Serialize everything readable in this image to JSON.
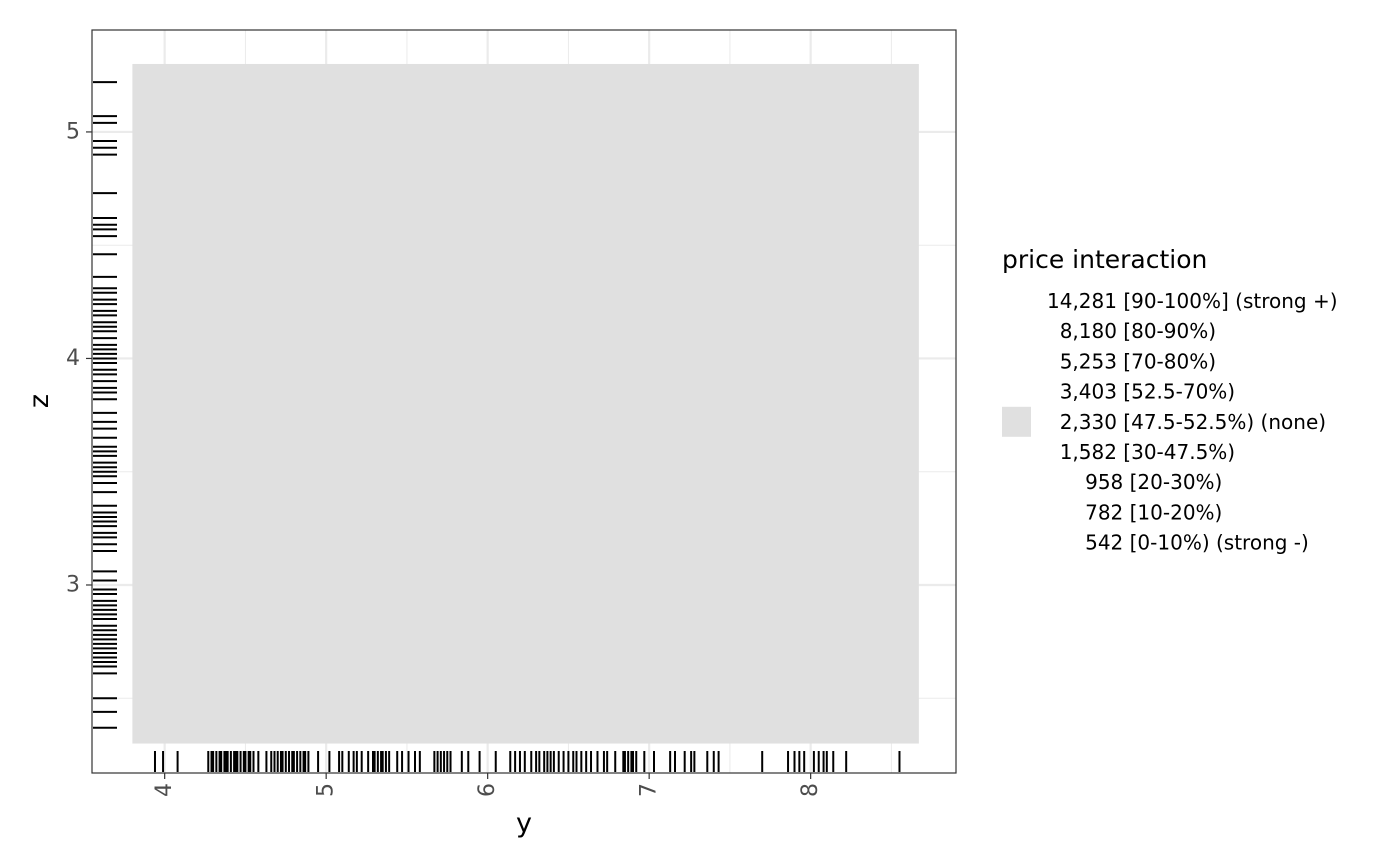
{
  "chart_data": {
    "type": "heatmap",
    "xlabel": "y",
    "ylabel": "z",
    "xlim": [
      3.55,
      8.9
    ],
    "ylim": [
      2.17,
      5.45
    ],
    "x_ticks": [
      "4",
      "5",
      "6",
      "7",
      "8"
    ],
    "y_ticks": [
      "3",
      "4",
      "5"
    ],
    "grid": true,
    "tile": {
      "x_range": [
        3.8,
        8.67
      ],
      "y_range": [
        2.3,
        5.3
      ],
      "category": "2,330 [47.5-52.5%) (none)"
    },
    "legend": {
      "title": "price interaction",
      "placement": "right",
      "entries": [
        {
          "label": "14,281 [90-100%] (strong +)",
          "color": ""
        },
        {
          "label": "8,180 [80-90%)",
          "color": ""
        },
        {
          "label": "5,253 [70-80%)",
          "color": ""
        },
        {
          "label": "3,403 [52.5-70%)",
          "color": ""
        },
        {
          "label": "2,330 [47.5-52.5%) (none)",
          "color": "#e0e0e0"
        },
        {
          "label": "1,582 [30-47.5%)",
          "color": ""
        },
        {
          "label": "958 [20-30%)",
          "color": ""
        },
        {
          "label": "782 [10-20%)",
          "color": ""
        },
        {
          "label": "542 [0-10%) (strong -)",
          "color": ""
        }
      ]
    },
    "rug_x": [
      3.94,
      3.99,
      4.08,
      4.27,
      4.29,
      4.3,
      4.32,
      4.34,
      4.35,
      4.37,
      4.38,
      4.39,
      4.41,
      4.43,
      4.44,
      4.45,
      4.47,
      4.49,
      4.5,
      4.52,
      4.53,
      4.55,
      4.58,
      4.63,
      4.66,
      4.68,
      4.7,
      4.72,
      4.73,
      4.75,
      4.77,
      4.79,
      4.8,
      4.82,
      4.84,
      4.86,
      4.87,
      4.89,
      4.95,
      5.02,
      5.08,
      5.1,
      5.14,
      5.17,
      5.19,
      5.22,
      5.26,
      5.29,
      5.3,
      5.32,
      5.34,
      5.35,
      5.37,
      5.39,
      5.44,
      5.47,
      5.51,
      5.55,
      5.58,
      5.67,
      5.69,
      5.71,
      5.73,
      5.75,
      5.77,
      5.84,
      5.88,
      5.95,
      6.05,
      6.14,
      6.17,
      6.2,
      6.23,
      6.27,
      6.3,
      6.32,
      6.35,
      6.37,
      6.39,
      6.41,
      6.44,
      6.47,
      6.5,
      6.53,
      6.55,
      6.58,
      6.61,
      6.64,
      6.68,
      6.72,
      6.74,
      6.79,
      6.84,
      6.85,
      6.87,
      6.89,
      6.9,
      6.92,
      6.97,
      7.03,
      7.13,
      7.16,
      7.22,
      7.26,
      7.28,
      7.36,
      7.4,
      7.43,
      7.7,
      7.86,
      7.9,
      7.93,
      7.96,
      8.02,
      8.05,
      8.08,
      8.1,
      8.14,
      8.22,
      8.55
    ],
    "rug_y": [
      2.37,
      2.44,
      2.5,
      2.61,
      2.64,
      2.66,
      2.68,
      2.7,
      2.72,
      2.74,
      2.76,
      2.78,
      2.8,
      2.82,
      2.85,
      2.87,
      2.89,
      2.91,
      2.93,
      2.96,
      2.98,
      3.02,
      3.06,
      3.15,
      3.18,
      3.21,
      3.23,
      3.26,
      3.28,
      3.3,
      3.32,
      3.35,
      3.41,
      3.45,
      3.48,
      3.5,
      3.52,
      3.54,
      3.57,
      3.59,
      3.61,
      3.65,
      3.69,
      3.72,
      3.76,
      3.82,
      3.85,
      3.87,
      3.9,
      3.93,
      3.95,
      3.98,
      4.0,
      4.02,
      4.04,
      4.06,
      4.09,
      4.12,
      4.14,
      4.16,
      4.19,
      4.21,
      4.24,
      4.26,
      4.29,
      4.31,
      4.36,
      4.46,
      4.54,
      4.57,
      4.59,
      4.62,
      4.73,
      4.9,
      4.93,
      4.96,
      5.04,
      5.07,
      5.22
    ]
  }
}
